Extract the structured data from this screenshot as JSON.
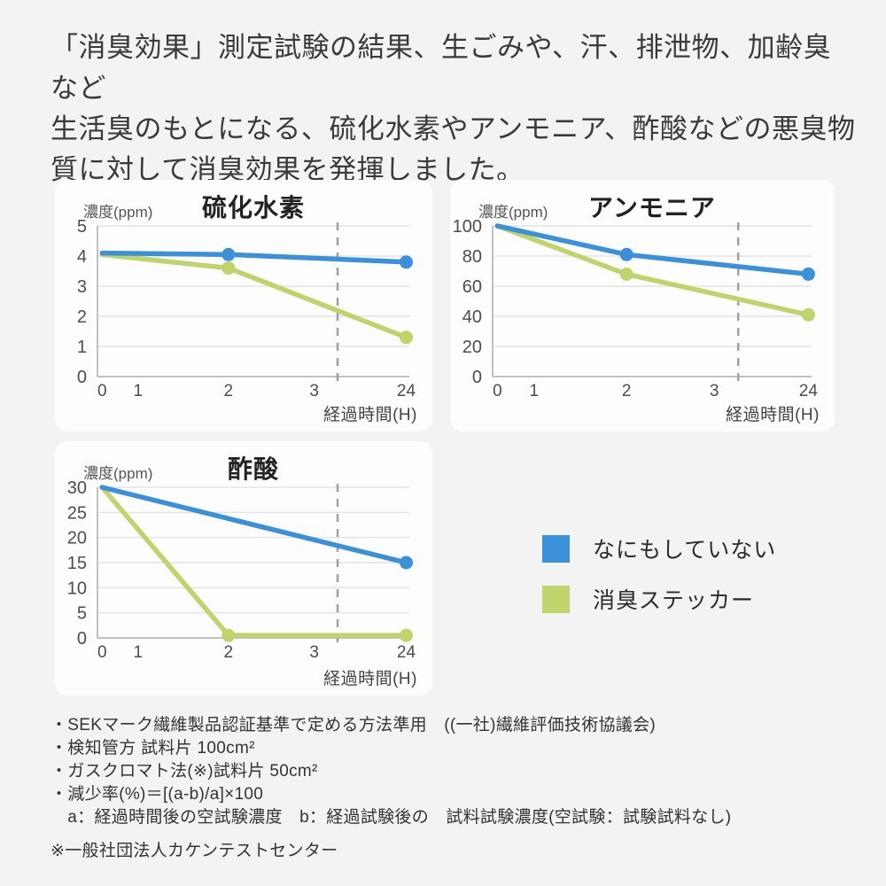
{
  "page": {
    "background": "#f3f3f3"
  },
  "header": {
    "lines": [
      "「消臭効果」測定試験の結果、生ごみや、汗、排泄物、加齢臭など",
      "生活臭のもとになる、硫化水素やアンモニア、酢酸などの悪臭物",
      "質に対して消臭効果を発揮しました。"
    ]
  },
  "legend": {
    "items": [
      {
        "label": "なにもしていない",
        "color": "#3a90d9"
      },
      {
        "label": "消臭ステッカー",
        "color": "#bfd46a"
      }
    ]
  },
  "chart_data": [
    {
      "type": "line",
      "title": "硫化水素",
      "y_unit_label": "濃度(ppm)",
      "x_axis_label": "経過時間(H)",
      "x_ticks": [
        "0",
        "1",
        "2",
        "3",
        "24"
      ],
      "ylim": [
        0,
        5
      ],
      "y_ticks": [
        0,
        1,
        2,
        3,
        4,
        5
      ],
      "grid": true,
      "dashed_break_line": true,
      "series": [
        {
          "name": "なにもしていない",
          "color": "#3a90d9",
          "values": [
            4.1,
            null,
            4.05,
            null,
            3.8
          ]
        },
        {
          "name": "消臭ステッカー",
          "color": "#bfd46a",
          "values": [
            4.05,
            null,
            3.6,
            null,
            1.3
          ]
        }
      ]
    },
    {
      "type": "line",
      "title": "アンモニア",
      "y_unit_label": "濃度(ppm)",
      "x_axis_label": "経過時間(H)",
      "x_ticks": [
        "0",
        "1",
        "2",
        "3",
        "24"
      ],
      "ylim": [
        0,
        100
      ],
      "y_ticks": [
        0,
        20,
        40,
        60,
        80,
        100
      ],
      "grid": true,
      "dashed_break_line": true,
      "series": [
        {
          "name": "なにもしていない",
          "color": "#3a90d9",
          "values": [
            100,
            null,
            81,
            null,
            68
          ]
        },
        {
          "name": "消臭ステッカー",
          "color": "#bfd46a",
          "values": [
            100,
            null,
            68,
            null,
            41
          ]
        }
      ]
    },
    {
      "type": "line",
      "title": "酢酸",
      "y_unit_label": "濃度(ppm)",
      "x_axis_label": "経過時間(H)",
      "x_ticks": [
        "0",
        "1",
        "2",
        "3",
        "24"
      ],
      "ylim": [
        0,
        30
      ],
      "y_ticks": [
        0,
        5,
        10,
        15,
        20,
        25,
        30
      ],
      "grid": true,
      "dashed_break_line": true,
      "series": [
        {
          "name": "なにもしていない",
          "color": "#3a90d9",
          "values": [
            30,
            null,
            null,
            null,
            15
          ]
        },
        {
          "name": "消臭ステッカー",
          "color": "#bfd46a",
          "values": [
            30,
            null,
            0.5,
            null,
            0.5
          ]
        }
      ]
    }
  ],
  "footnotes": [
    "・SEKマーク繊維製品認証基準で定める方法準用　((一社)繊維評価技術協議会)",
    "・検知管方 試料片 100cm²",
    "・ガスクロマト法(※)試料片 50cm²",
    "・減少率(%)＝[(a-b)/a]×100",
    "　a：経過時間後の空試験濃度　b：経過試験後の　試料試験濃度(空試験：試験試料なし)",
    "※一般社団法人カケンテストセンター"
  ]
}
